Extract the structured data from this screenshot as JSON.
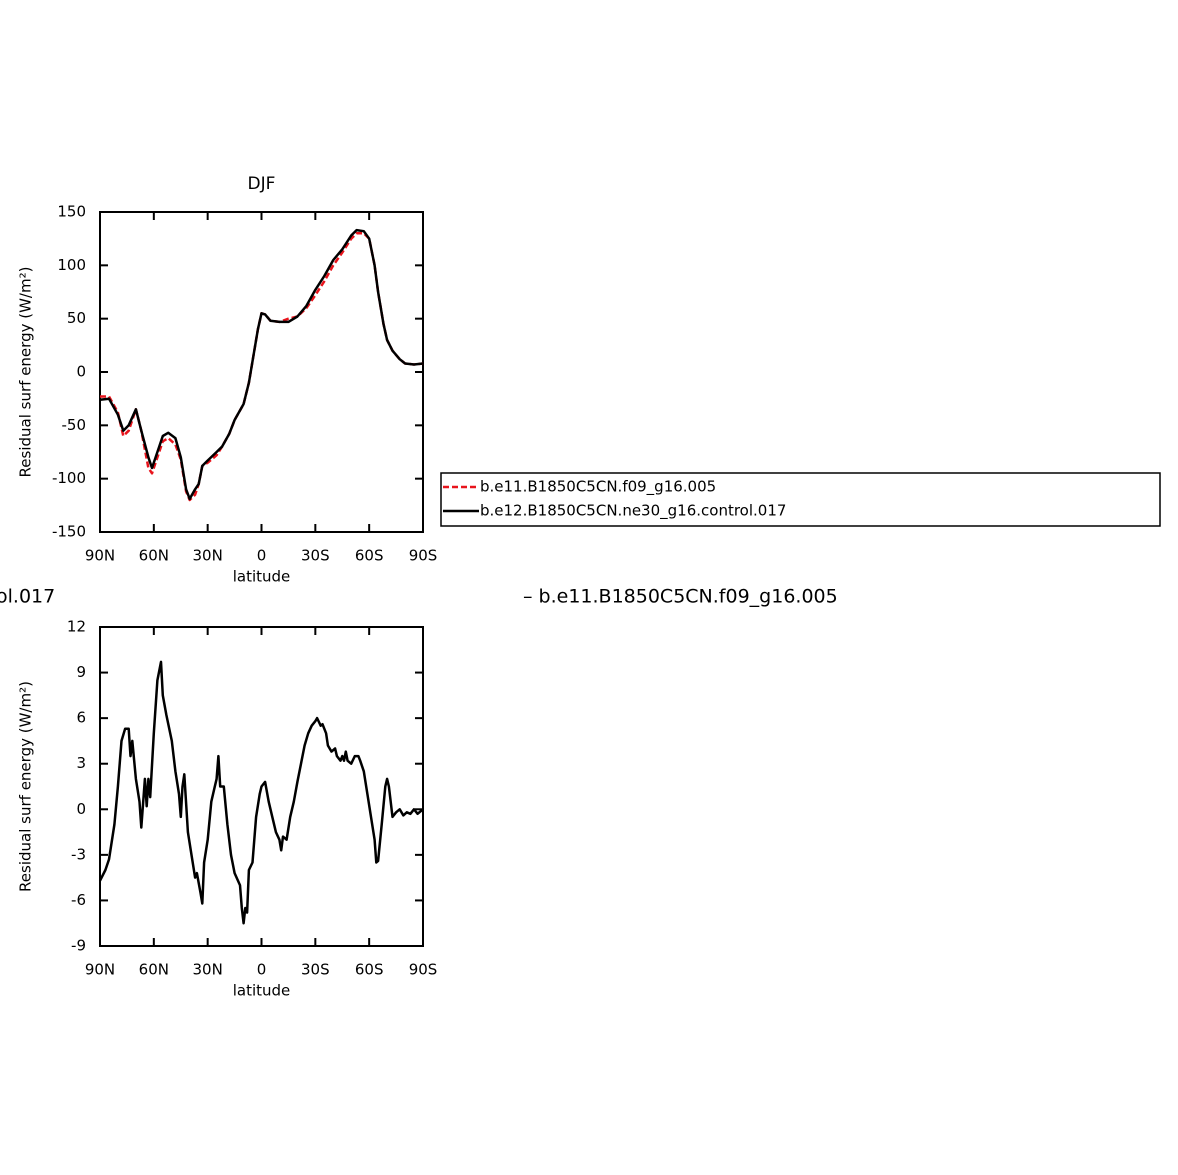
{
  "chart_data": [
    {
      "type": "line",
      "title": "DJF",
      "xlabel": "latitude",
      "ylabel": "Residual surf energy (W/m²)",
      "xlim": [
        90,
        -90
      ],
      "xticks": [
        {
          "value": 90,
          "label": "90N"
        },
        {
          "value": 60,
          "label": "60N"
        },
        {
          "value": 30,
          "label": "30N"
        },
        0,
        {
          "value": -30,
          "label": "30S"
        },
        {
          "value": -60,
          "label": "60S"
        },
        {
          "value": -90,
          "label": "90S"
        }
      ],
      "ylim": [
        -150,
        150
      ],
      "yticks": [
        -150,
        -100,
        -50,
        0,
        50,
        100,
        150
      ],
      "x": [
        90,
        85,
        80,
        77,
        74,
        70,
        67,
        63,
        61,
        58,
        55,
        52,
        48,
        45,
        42,
        40,
        37,
        35,
        33,
        30,
        25,
        22,
        18,
        15,
        10,
        7,
        5,
        2,
        0,
        -2,
        -5,
        -10,
        -15,
        -20,
        -25,
        -30,
        -35,
        -40,
        -45,
        -50,
        -53,
        -57,
        -60,
        -63,
        -65,
        -68,
        -70,
        -73,
        -77,
        -80,
        -85,
        -90
      ],
      "series": [
        {
          "name": "b.e11.B1850C5CN.f09_g16.005",
          "color": "#e8141c",
          "dashed": true,
          "values": [
            -23,
            -23,
            -38,
            -60,
            -55,
            -35,
            -55,
            -90,
            -95,
            -80,
            -65,
            -62,
            -68,
            -82,
            -112,
            -120,
            -115,
            -105,
            -88,
            -85,
            -78,
            -70,
            -58,
            -45,
            -30,
            -10,
            10,
            40,
            55,
            54,
            48,
            47,
            50,
            52,
            60,
            72,
            85,
            100,
            112,
            125,
            130,
            130,
            125,
            100,
            75,
            45,
            30,
            20,
            12,
            8,
            7,
            8
          ]
        },
        {
          "name": "b.e12.B1850C5CN.ne30_g16.control.017",
          "color": "#000000",
          "dashed": false,
          "values": [
            -26,
            -25,
            -40,
            -55,
            -50,
            -35,
            -55,
            -80,
            -90,
            -75,
            -60,
            -57,
            -62,
            -80,
            -110,
            -119,
            -110,
            -105,
            -88,
            -83,
            -75,
            -70,
            -58,
            -45,
            -30,
            -10,
            10,
            40,
            55,
            54,
            48,
            47,
            47,
            52,
            62,
            77,
            90,
            105,
            115,
            128,
            133,
            132,
            125,
            100,
            75,
            45,
            30,
            20,
            12,
            8,
            7,
            8
          ]
        }
      ]
    },
    {
      "type": "line",
      "annotations": [
        "ol.017",
        "– b.e11.B1850C5CN.f09_g16.005"
      ],
      "xlabel": "latitude",
      "ylabel": "Residual surf energy (W/m²)",
      "xlim": [
        90,
        -90
      ],
      "xticks": [
        {
          "value": 90,
          "label": "90N"
        },
        {
          "value": 60,
          "label": "60N"
        },
        {
          "value": 30,
          "label": "30N"
        },
        0,
        {
          "value": -30,
          "label": "30S"
        },
        {
          "value": -60,
          "label": "60S"
        },
        {
          "value": -90,
          "label": "90S"
        }
      ],
      "ylim": [
        -9,
        12
      ],
      "yticks": [
        -9,
        -6,
        -3,
        0,
        3,
        6,
        9,
        12
      ],
      "x": [
        90,
        87,
        85,
        82,
        80,
        78,
        76,
        74,
        73,
        72,
        70,
        68,
        67,
        65,
        64,
        63,
        62,
        60,
        58,
        56,
        55,
        53,
        50,
        48,
        46,
        45,
        44,
        43,
        41,
        39,
        37,
        36,
        34,
        33,
        32,
        30,
        28,
        26,
        25,
        24,
        23,
        21,
        19,
        17,
        15,
        12,
        11,
        10,
        9,
        8,
        7,
        5,
        3,
        1,
        0,
        -2,
        -4,
        -6,
        -8,
        -10,
        -11,
        -12,
        -14,
        -16,
        -18,
        -20,
        -22,
        -24,
        -26,
        -28,
        -30,
        -31,
        -33,
        -34,
        -36,
        -37,
        -39,
        -41,
        -42,
        -44,
        -45,
        -46,
        -47,
        -48,
        -50,
        -52,
        -54,
        -55,
        -57,
        -59,
        -61,
        -63,
        -64,
        -65,
        -67,
        -69,
        -70,
        -71,
        -73,
        -75,
        -77,
        -79,
        -81,
        -83,
        -85,
        -87,
        -90
      ],
      "color": "#000000",
      "values": [
        -4.7,
        -4.0,
        -3.3,
        -1.0,
        1.5,
        4.5,
        5.3,
        5.3,
        3.5,
        4.5,
        2.0,
        0.5,
        -1.2,
        2.0,
        0.2,
        2.0,
        0.8,
        5,
        8.5,
        9.7,
        7.5,
        6.2,
        4.5,
        2.5,
        1.0,
        -0.5,
        1.5,
        2.3,
        -1.5,
        -3.0,
        -4.5,
        -4.2,
        -5.5,
        -6.2,
        -3.5,
        -2.0,
        0.5,
        1.5,
        2.0,
        3.5,
        1.5,
        1.5,
        -1.0,
        -3.0,
        -4.2,
        -5.0,
        -6.5,
        -7.5,
        -6.5,
        -6.8,
        -4.0,
        -3.5,
        -0.5,
        1.0,
        1.5,
        1.8,
        0.5,
        -0.5,
        -1.5,
        -2.0,
        -2.7,
        -1.8,
        -2.0,
        -0.5,
        0.5,
        1.8,
        3.0,
        4.2,
        5.0,
        5.5,
        5.8,
        6.0,
        5.5,
        5.6,
        5.0,
        4.2,
        3.8,
        4.0,
        3.5,
        3.2,
        3.5,
        3.2,
        3.8,
        3.2,
        3.0,
        3.5,
        3.5,
        3.2,
        2.5,
        1.0,
        -0.5,
        -2.0,
        -3.5,
        -3.4,
        -1.0,
        1.5,
        2.0,
        1.5,
        -0.5,
        -0.2,
        0,
        -0.4,
        -0.2,
        -0.3,
        0,
        -0.3,
        0
      ]
    }
  ]
}
